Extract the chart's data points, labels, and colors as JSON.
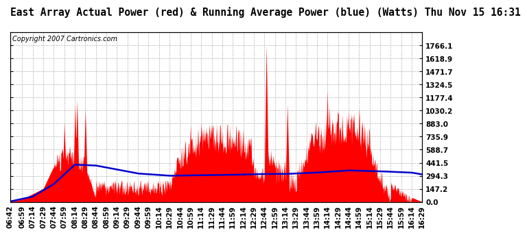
{
  "title": "East Array Actual Power (red) & Running Average Power (blue) (Watts) Thu Nov 15 16:31",
  "copyright": "Copyright 2007 Cartronics.com",
  "ylim": [
    0,
    1913
  ],
  "ytick_values": [
    0.0,
    147.2,
    294.3,
    441.5,
    588.7,
    735.9,
    883.0,
    1030.2,
    1177.4,
    1324.5,
    1471.7,
    1618.9,
    1766.1
  ],
  "bg_color": "#ffffff",
  "actual_color": "#ff0000",
  "avg_color": "#0000cc",
  "grid_color": "#aaaaaa",
  "title_fontsize": 10.5,
  "copy_fontsize": 7,
  "tick_fontsize": 7.5,
  "x_tick_labels": [
    "06:42",
    "06:59",
    "07:14",
    "07:29",
    "07:44",
    "07:59",
    "08:14",
    "08:29",
    "08:44",
    "08:59",
    "09:14",
    "09:29",
    "09:44",
    "09:59",
    "10:14",
    "10:29",
    "10:44",
    "10:59",
    "11:14",
    "11:29",
    "11:44",
    "11:59",
    "12:14",
    "12:29",
    "12:44",
    "12:59",
    "13:14",
    "13:29",
    "13:44",
    "13:59",
    "14:14",
    "14:29",
    "14:44",
    "14:59",
    "15:14",
    "15:29",
    "15:44",
    "15:59",
    "16:14",
    "16:29"
  ]
}
